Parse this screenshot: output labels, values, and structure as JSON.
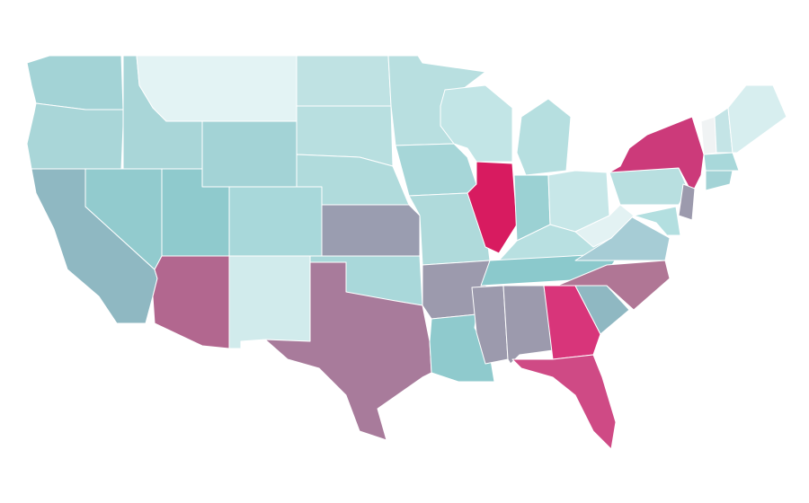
{
  "regions": [
    {
      "color": "#a3d3d6"
    },
    {
      "color": "#a9d6d8"
    },
    {
      "color": "#8fb8c2"
    },
    {
      "color": "#92cbce"
    },
    {
      "color": "#a9d6d8"
    },
    {
      "color": "#e3f3f4"
    },
    {
      "color": "#a3d3d6"
    },
    {
      "color": "#8fcacd"
    },
    {
      "color": "#a8d8da"
    },
    {
      "color": "#b2678f"
    },
    {
      "color": "#d1ebec"
    },
    {
      "color": "#bfe2e3"
    },
    {
      "color": "#b8dfe0"
    },
    {
      "color": "#b0dbdc"
    },
    {
      "color": "#9a9db0"
    },
    {
      "color": "#a9d8da"
    },
    {
      "color": "#a87b9b"
    },
    {
      "color": "#b8dfe0"
    },
    {
      "color": "#a6d6d8"
    },
    {
      "color": "#afdadb"
    },
    {
      "color": "#9c9aad"
    },
    {
      "color": "#8fcacd"
    },
    {
      "color": "#c2e5e6"
    },
    {
      "color": "#d81b60"
    },
    {
      "color": "#b6dfe0"
    },
    {
      "color": "#9bd1d3"
    },
    {
      "color": "#c7e7e8"
    },
    {
      "color": "#b8e0e1"
    },
    {
      "color": "#8bc9cc"
    },
    {
      "color": "#9c9aad"
    },
    {
      "color": "#9c9aad"
    },
    {
      "color": "#d8357a"
    },
    {
      "color": "#cf4a85"
    },
    {
      "color": "#8fb8c2"
    },
    {
      "color": "#b07695"
    },
    {
      "color": "#a6ccd5"
    },
    {
      "color": "#e3f2f3"
    },
    {
      "color": "#b8dfe0"
    },
    {
      "color": "#cc3a7a"
    },
    {
      "color": "#f0f3f4"
    },
    {
      "color": "#c4e4e6"
    },
    {
      "color": "#d7eeef"
    },
    {
      "color": "#a8d8da"
    },
    {
      "color": "#a3d3d6"
    },
    {
      "color": "#9c9aad"
    },
    {
      "color": "#b3dfe0"
    }
  ]
}
